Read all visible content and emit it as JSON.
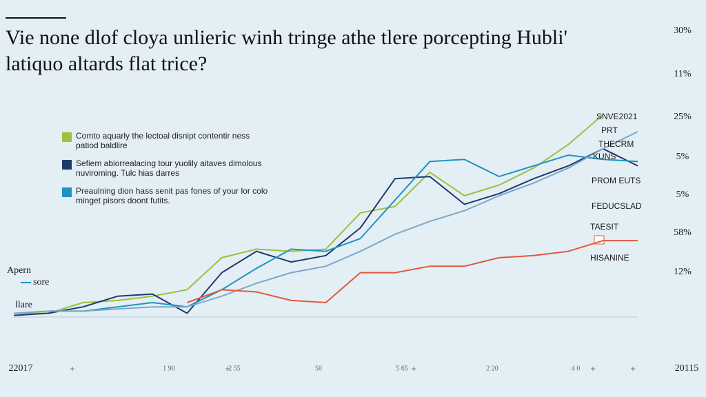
{
  "chart_data": {
    "type": "line",
    "title": "Vie none dlof cloya unlieric winh tringe athe tlere porcepting Hubli' latiquo altards flat trice?",
    "x": [
      0,
      1,
      2,
      3,
      4,
      5,
      6,
      7,
      8,
      9,
      10,
      11,
      12,
      13,
      14,
      15,
      16,
      17,
      18
    ],
    "xlim": [
      0,
      18
    ],
    "ylim": [
      0,
      100
    ],
    "series": [
      {
        "name": "Comto aquarly the lectoal disnipt contentir ness patiod baldlire",
        "color": "#9bc23c",
        "values": [
          5,
          5,
          10,
          11,
          13,
          16,
          31,
          35,
          34,
          35,
          52,
          55,
          71,
          60,
          65,
          73,
          84,
          98,
          null
        ]
      },
      {
        "name": "Sefiem abiorrealacing tour yuolily aitaves dimolous nuviroming. Tulc hias darres",
        "color": "#1d3a6e",
        "values": [
          4,
          5,
          8,
          13,
          14,
          5,
          24,
          34,
          29,
          32,
          45,
          68,
          69,
          56,
          61,
          68,
          74,
          82,
          74
        ]
      },
      {
        "name": "Preaulning dion hass senit pas fones of your lor colo minget pisors doont futits.",
        "color": "#1e93c0",
        "values": [
          null,
          6,
          6,
          8,
          10,
          8,
          16,
          26,
          35,
          34,
          40,
          58,
          76,
          77,
          69,
          74,
          79,
          77,
          76
        ]
      },
      {
        "color": "#7aa8c8",
        "values": [
          5,
          6,
          6,
          7,
          8,
          8,
          13,
          19,
          24,
          27,
          34,
          42,
          48,
          53,
          60,
          66,
          73,
          82,
          90
        ]
      },
      {
        "color": "#e05a3a",
        "values": [
          null,
          null,
          null,
          null,
          null,
          10,
          16,
          15,
          11,
          10,
          24,
          24,
          27,
          27,
          31,
          32,
          34,
          39,
          39
        ]
      }
    ],
    "right_labels": [
      "30%",
      "11%",
      "25%",
      "5%",
      "5%",
      "58%",
      "12%"
    ],
    "series_labels": [
      "SNVE2021",
      "PRT",
      "THECRM",
      "KUNS",
      "PROM EUTS",
      "FEDUCSLAD",
      "TAESIT",
      "HISANINE"
    ],
    "left_labels": [
      "Apern",
      "sore",
      "llare"
    ],
    "bottom_labels": [
      "22017",
      "1 90",
      "2 55",
      "50",
      "5 65",
      "2 20",
      "4 0",
      "20115"
    ]
  }
}
